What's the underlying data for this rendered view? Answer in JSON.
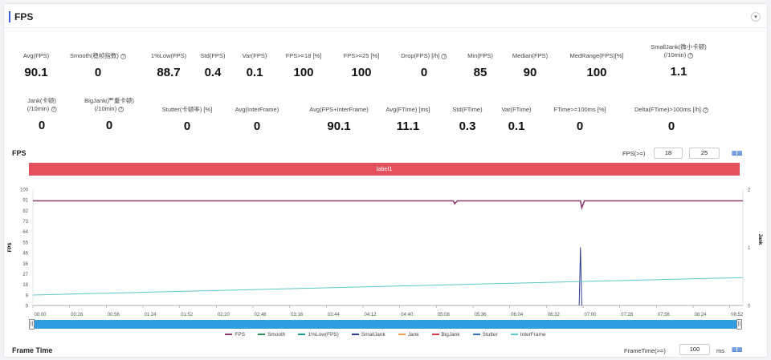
{
  "header": {
    "title": "FPS",
    "collapse_icon": "chevron-down-icon"
  },
  "stats_row1": [
    {
      "label": "Avg(FPS)",
      "value": "90.1",
      "help": false
    },
    {
      "label": "Smooth(稳帧指数)",
      "value": "0",
      "help": true
    },
    {
      "label": "1%Low(FPS)",
      "value": "88.7",
      "help": false
    },
    {
      "label": "Std(FPS)",
      "value": "0.4",
      "help": false
    },
    {
      "label": "Var(FPS)",
      "value": "0.1",
      "help": false
    },
    {
      "label": "FPS>=18 [%]",
      "value": "100",
      "help": false
    },
    {
      "label": "FPS>=25 [%]",
      "value": "100",
      "help": false
    },
    {
      "label": "Drop(FPS) [/h]",
      "value": "0",
      "help": true
    },
    {
      "label": "Min(FPS)",
      "value": "85",
      "help": false
    },
    {
      "label": "Median(FPS)",
      "value": "90",
      "help": false
    },
    {
      "label": "MedRange(FPS)[%]",
      "value": "100",
      "help": false
    },
    {
      "label": "SmallJank(微小卡顿)",
      "label2": "(/10min)",
      "value": "1.1",
      "help": true
    }
  ],
  "stats_row2": [
    {
      "label": "Jank(卡顿)",
      "label2": "(/10min)",
      "value": "0",
      "help": true
    },
    {
      "label": "BigJank(严重卡顿)",
      "label2": "(/10min)",
      "value": "0",
      "help": true
    },
    {
      "label": "Stutter(卡顿率) [%]",
      "value": "0",
      "help": false
    },
    {
      "label": "Avg(InterFrame)",
      "value": "0",
      "help": false
    },
    {
      "label": "Avg(FPS+InterFrame)",
      "value": "90.1",
      "help": false
    },
    {
      "label": "Avg(FTime) [ms]",
      "value": "11.1",
      "help": false
    },
    {
      "label": "Std(FTime)",
      "value": "0.3",
      "help": false
    },
    {
      "label": "Var(FTime)",
      "value": "0.1",
      "help": false
    },
    {
      "label": "FTime>=100ms [%]",
      "value": "0",
      "help": false
    },
    {
      "label": "Delta(FTime)>100ms [/h]",
      "value": "0",
      "help": true
    }
  ],
  "fps_section": {
    "title": "FPS",
    "threshold_label": "FPS(>=)",
    "threshold1": "18",
    "threshold2": "25",
    "settings_icon": "chart-settings-icon",
    "label_bar": "label1"
  },
  "frametime_section": {
    "title": "Frame Time",
    "threshold_label": "FrameTime(>=)",
    "threshold": "100",
    "unit": "ms"
  },
  "chart_data": {
    "type": "line",
    "ylabel": "FPS",
    "y2label": "Jank",
    "ylim": [
      0,
      100
    ],
    "y2lim": [
      0,
      2
    ],
    "yticks": [
      "100",
      "91",
      "82",
      "73",
      "64",
      "55",
      "46",
      "36",
      "27",
      "18",
      "9",
      "0"
    ],
    "y2ticks": [
      "2",
      "1",
      "0"
    ],
    "xticks": [
      "00:00",
      "00:28",
      "00:56",
      "01:24",
      "01:52",
      "02:20",
      "02:48",
      "03:16",
      "03:44",
      "04:12",
      "04:40",
      "05:08",
      "05:36",
      "06:04",
      "06:32",
      "07:00",
      "07:28",
      "07:56",
      "08:24",
      "08:52"
    ],
    "x_range_seconds": [
      0,
      542
    ],
    "series": [
      {
        "name": "FPS",
        "color": "#8e3a6e",
        "points": [
          [
            0,
            90
          ],
          [
            321,
            90
          ],
          [
            322,
            87.5
          ],
          [
            324,
            90
          ],
          [
            418,
            90
          ],
          [
            419,
            84
          ],
          [
            421,
            90
          ],
          [
            542,
            90
          ]
        ]
      },
      {
        "name": "Smooth",
        "color": "#2e8b57",
        "points": []
      },
      {
        "name": "1%Low(FPS)",
        "color": "#1a9a8a",
        "points": []
      },
      {
        "name": "SmallJank",
        "color": "#2f3a8f",
        "axis": "right",
        "points": [
          [
            417,
            0
          ],
          [
            418,
            1
          ],
          [
            419,
            0
          ]
        ]
      },
      {
        "name": "Jank",
        "color": "#f0a050",
        "points": []
      },
      {
        "name": "BigJank",
        "color": "#d9364f",
        "points": []
      },
      {
        "name": "Stutter",
        "color": "#3a6fb0",
        "points": []
      },
      {
        "name": "InterFrame",
        "color": "#5fc7c7",
        "points": [
          [
            0,
            9
          ],
          [
            542,
            24
          ]
        ]
      }
    ]
  }
}
